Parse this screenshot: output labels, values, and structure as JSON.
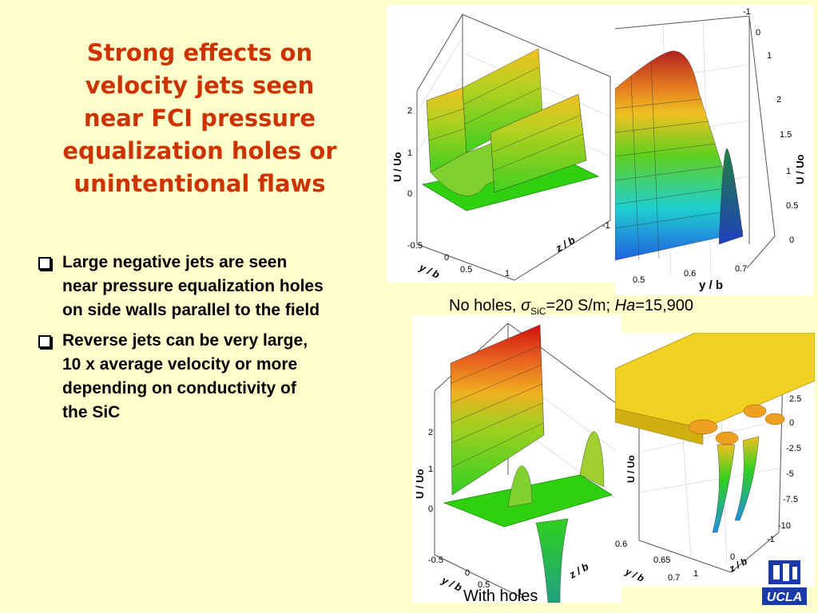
{
  "title": {
    "lines": [
      "Strong effects on",
      "velocity jets seen",
      "near FCI pressure",
      "equalization holes or",
      "unintentional flaws"
    ]
  },
  "bullets": [
    {
      "lines": [
        "Large negative jets are seen",
        "near pressure equalization holes",
        "on side walls parallel to the field"
      ]
    },
    {
      "lines": [
        "Reverse jets can be very large,",
        "10 x average velocity or more",
        "depending on conductivity of",
        "the SiC"
      ]
    }
  ],
  "captions": {
    "top_prefix": "No holes, ",
    "sigma": "σ",
    "sigma_sub": "SiC",
    "top_middle": "=20 S/m; ",
    "ha": "Ha",
    "top_suffix": "=15,900",
    "bottom": "With holes"
  },
  "plots": {
    "tl": {
      "zlabel": "U / Uo",
      "ylabel": "y / b",
      "zlabel2": "z / b",
      "z_ticks": [
        "2",
        "1",
        "0"
      ],
      "y_ticks": [
        "-0.5",
        "0",
        "0.5"
      ],
      "z_axis_ticks": [
        "-1",
        "0",
        "1"
      ]
    },
    "tr": {
      "zlabel": "U / Uo",
      "ylabel": "y / b",
      "z_ticks": [
        "2",
        "1.5",
        "1",
        "0.5",
        "0"
      ],
      "top_ticks": [
        "-1",
        "0",
        "1"
      ],
      "y_ticks": [
        "0.5",
        "0.6",
        "0.7"
      ]
    },
    "bl": {
      "zlabel": "U / Uo",
      "ylabel": "y / b",
      "zlabel2": "z / b",
      "z_ticks": [
        "2",
        "1",
        "0"
      ],
      "y_ticks": [
        "-0.5",
        "0",
        "0.5"
      ],
      "z_axis_ticks": [
        "1"
      ]
    },
    "br": {
      "zlabel": "U / Uo",
      "ylabel": "y / b",
      "zlabel2": "z / b",
      "z_ticks": [
        "2.5",
        "0",
        "-2.5",
        "-5",
        "-7.5",
        "-10"
      ],
      "y_ticks": [
        "0.6",
        "0.65",
        "0.7"
      ],
      "z_axis_ticks": [
        "1",
        "0",
        "-1"
      ]
    }
  },
  "colors": {
    "title": "#cc3300",
    "background": "#ffffcc"
  },
  "logo": "UCLA"
}
